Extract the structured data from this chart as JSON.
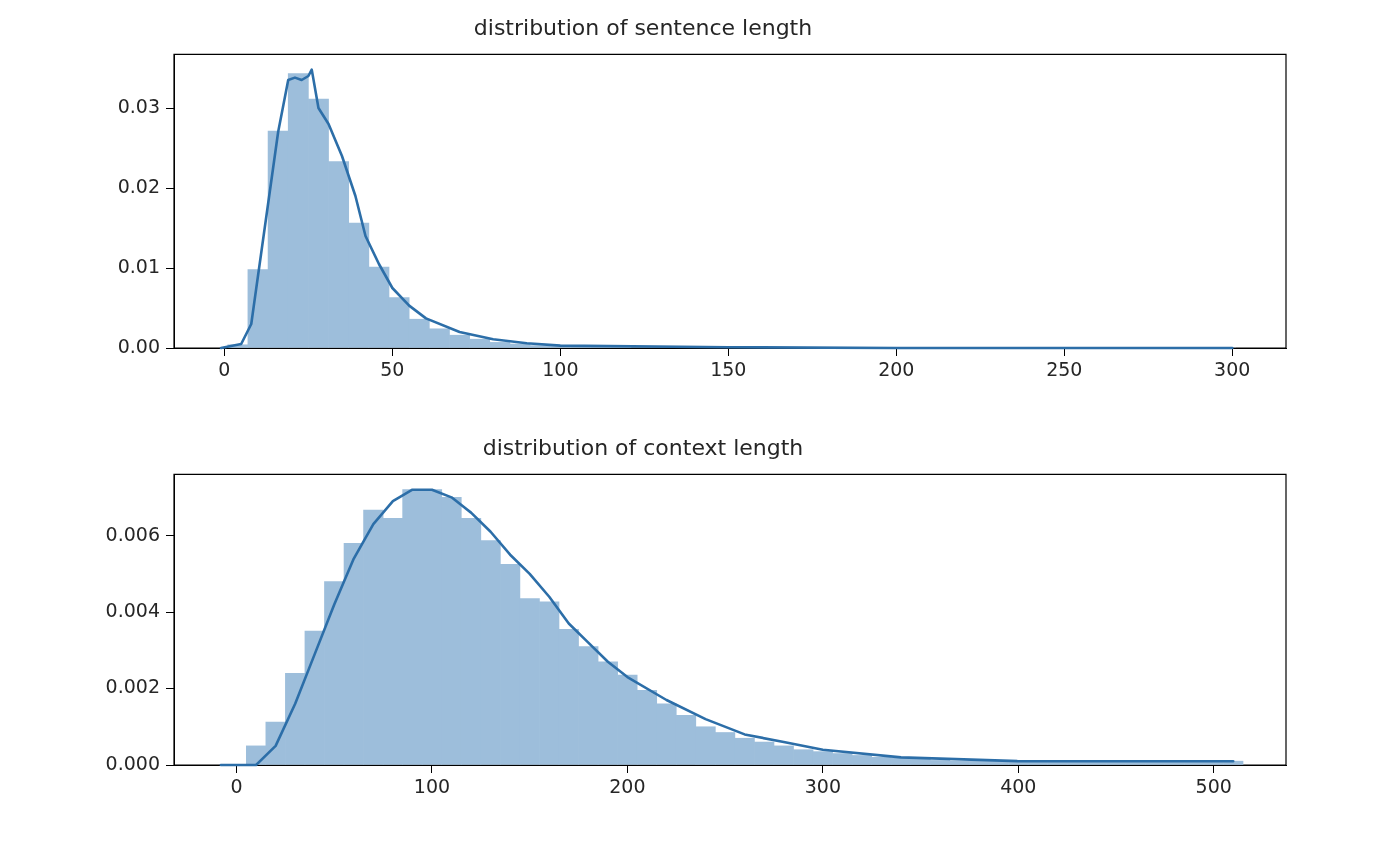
{
  "chart_data": [
    {
      "type": "histogram",
      "title": "distribution of sentence length",
      "xlim": [
        -15,
        316
      ],
      "ylim": [
        0,
        0.0367
      ],
      "xticks": [
        0,
        50,
        100,
        150,
        200,
        250,
        300
      ],
      "yticks": [
        {
          "value": 0,
          "label": "0.00"
        },
        {
          "value": 0.01,
          "label": "0.01"
        },
        {
          "value": 0.02,
          "label": "0.02"
        },
        {
          "value": 0.03,
          "label": "0.03"
        }
      ],
      "bins": [
        1,
        7,
        13,
        19,
        25,
        31,
        37,
        43,
        49,
        55,
        61,
        67,
        73,
        79,
        85,
        91,
        97,
        103,
        109,
        115,
        121,
        127,
        133,
        139,
        145,
        151,
        157,
        163,
        169,
        175,
        181,
        187,
        193,
        199,
        205,
        211,
        217,
        223,
        229,
        235,
        241,
        247,
        253,
        259,
        265,
        271,
        277,
        283,
        289,
        295,
        301
      ],
      "series": [
        {
          "type": "histogram",
          "color": "#9dbedb",
          "values": [
            0.0004,
            0.0098,
            0.0271,
            0.0343,
            0.0311,
            0.0233,
            0.0156,
            0.0101,
            0.0063,
            0.0036,
            0.0024,
            0.0016,
            0.0011,
            0.0007,
            0.0005,
            0.0003,
            0.0002,
            0.0002,
            0.0001,
            0.0001,
            0,
            0,
            0,
            0,
            0,
            0,
            0,
            0,
            0,
            0,
            0,
            0,
            0,
            0,
            0,
            0,
            0,
            0,
            0,
            0,
            0,
            0,
            0,
            0,
            0,
            0,
            0,
            0,
            0,
            0
          ]
        },
        {
          "type": "line",
          "color": "#2c6ea8",
          "x": [
            -1,
            5,
            8,
            12,
            16,
            19,
            21,
            23,
            25,
            26,
            28,
            31,
            35,
            39,
            42,
            46,
            50,
            55,
            60,
            70,
            80,
            90,
            100,
            150,
            200,
            300
          ],
          "values": [
            0,
            0.0005,
            0.003,
            0.015,
            0.027,
            0.0335,
            0.0338,
            0.0335,
            0.034,
            0.0348,
            0.03,
            0.028,
            0.024,
            0.019,
            0.014,
            0.0105,
            0.0075,
            0.0053,
            0.0037,
            0.002,
            0.0011,
            0.0006,
            0.0003,
            0.0001,
            0,
            0
          ]
        }
      ]
    },
    {
      "type": "histogram",
      "title": "distribution of context length",
      "xlim": [
        -32,
        537
      ],
      "ylim": [
        0,
        0.0076
      ],
      "xticks": [
        0,
        100,
        200,
        300,
        400,
        500
      ],
      "yticks": [
        {
          "value": 0,
          "label": "0.000"
        },
        {
          "value": 0.002,
          "label": "0.002"
        },
        {
          "value": 0.004,
          "label": "0.004"
        },
        {
          "value": 0.006,
          "label": "0.006"
        }
      ],
      "bins": [
        5,
        15,
        25,
        35,
        45,
        55,
        65,
        75,
        85,
        95,
        105,
        115,
        125,
        135,
        145,
        155,
        165,
        175,
        185,
        195,
        205,
        215,
        225,
        235,
        245,
        255,
        265,
        275,
        285,
        295,
        305,
        315,
        325,
        335,
        345,
        355,
        365,
        375,
        385,
        395,
        405,
        415,
        425,
        435,
        445,
        455,
        465,
        475,
        485,
        495,
        505,
        515
      ],
      "series": [
        {
          "type": "histogram",
          "color": "#9dbedb",
          "values": [
            0.0005,
            0.00112,
            0.0024,
            0.0035,
            0.0048,
            0.0058,
            0.00667,
            0.00645,
            0.0072,
            0.0072,
            0.007,
            0.00645,
            0.00587,
            0.00525,
            0.00435,
            0.00427,
            0.00355,
            0.0031,
            0.0027,
            0.00235,
            0.00195,
            0.0016,
            0.0013,
            0.001,
            0.00085,
            0.0007,
            0.0006,
            0.0005,
            0.0004,
            0.00035,
            0.0003,
            0.00025,
            0.0002,
            0.00018,
            0.00015,
            0.00012,
            0.0001,
            0.0001,
            0.0001,
            0.0001,
            0.0001,
            0.0001,
            0.0001,
            0.0001,
            0.0001,
            0.0001,
            0.0001,
            0.0001,
            0.0001,
            0.0001,
            0.0001
          ]
        },
        {
          "type": "line",
          "color": "#2c6ea8",
          "x": [
            -8,
            10,
            20,
            30,
            40,
            50,
            60,
            70,
            80,
            90,
            100,
            110,
            120,
            130,
            140,
            150,
            160,
            170,
            180,
            190,
            200,
            220,
            240,
            260,
            280,
            300,
            340,
            400,
            510
          ],
          "values": [
            0,
            0,
            0.0005,
            0.0016,
            0.0029,
            0.0042,
            0.0054,
            0.0063,
            0.0069,
            0.0072,
            0.0072,
            0.007,
            0.0066,
            0.0061,
            0.0055,
            0.005,
            0.0044,
            0.0037,
            0.0032,
            0.0027,
            0.0023,
            0.0017,
            0.0012,
            0.0008,
            0.0006,
            0.0004,
            0.0002,
            0.0001,
            0.0001
          ]
        }
      ]
    }
  ]
}
